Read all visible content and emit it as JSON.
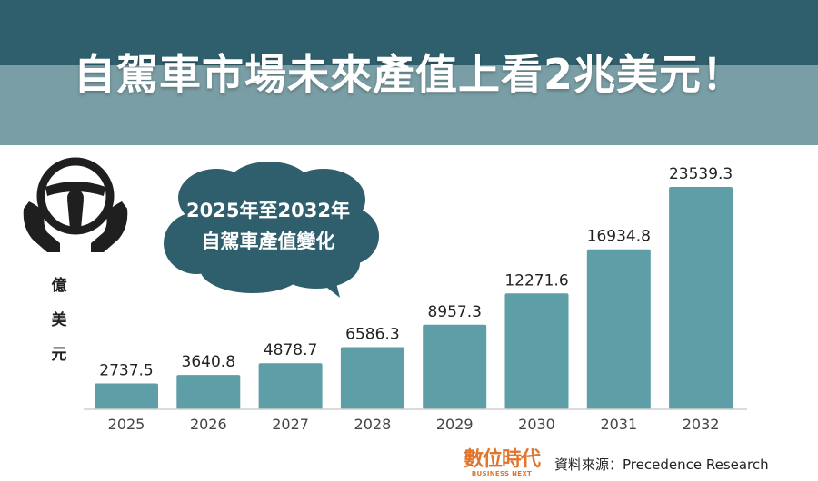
{
  "header": {
    "title": "自駕車市場未來產值上看2兆美元！"
  },
  "callout": {
    "line1": "2025年至2032年",
    "line2": "自駕車產值變化"
  },
  "unit_label": [
    "億",
    "美",
    "元"
  ],
  "footer": {
    "logo_main": "數位時代",
    "logo_sub": "BUSINESS NEXT",
    "source": "資料來源：Precedence Research"
  },
  "colors": {
    "bar": "#5e9ea7",
    "banner_dark": "#2f5f6c",
    "banner_light": "#7a9ea5",
    "bubble": "#2f5f6c",
    "logo": "#e0752c"
  },
  "icons": [
    "steering-wheel-icon",
    "hands-icon",
    "speech-bubble"
  ],
  "chart_data": {
    "type": "bar",
    "categories": [
      "2025",
      "2026",
      "2027",
      "2028",
      "2029",
      "2030",
      "2031",
      "2032"
    ],
    "values": [
      2737.5,
      3640.8,
      4878.7,
      6586.3,
      8957.3,
      12271.6,
      16934.8,
      23539.3
    ],
    "value_labels": [
      "2737.5",
      "3640.8",
      "4878.7",
      "6586.3",
      "8957.3",
      "12271.6",
      "16934.8",
      "23539.3"
    ],
    "ylabel": "億美元",
    "ylim": [
      0,
      24000
    ],
    "grid": false,
    "legend": "none"
  }
}
